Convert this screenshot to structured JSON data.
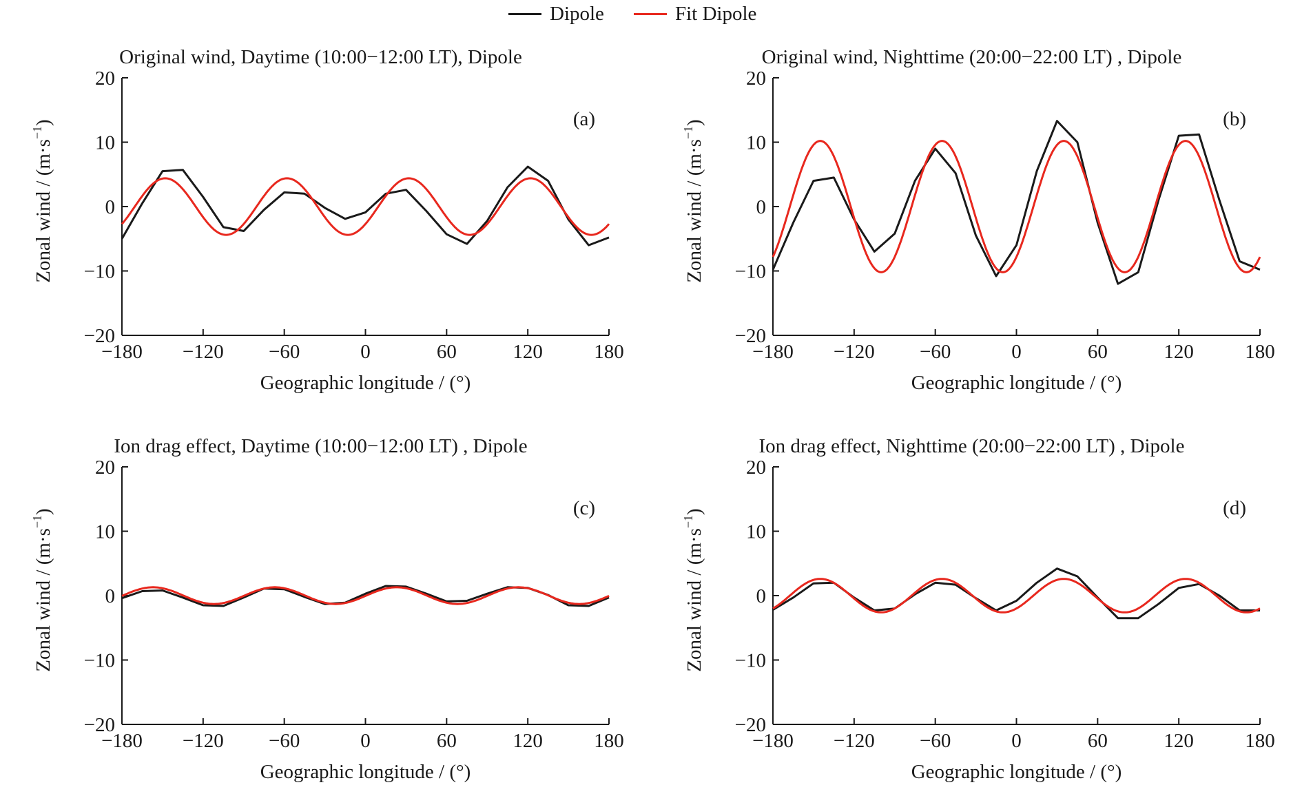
{
  "legend": {
    "items": [
      {
        "label": "Dipole",
        "color": "#1a1a1a"
      },
      {
        "label": "Fit Dipole",
        "color": "#e8281e"
      }
    ]
  },
  "chart_data": [
    {
      "type": "line",
      "title": "Original wind, Daytime (10:00−12:00 LT), Dipole",
      "panel_label": "(a)",
      "xlabel": "Geographic longitude / (°)",
      "ylabel": "Zonal wind / (m·s",
      "ylabel_sup": "−1",
      "ylabel_tail": ")",
      "xlim": [
        -180,
        180
      ],
      "ylim": [
        -20,
        20
      ],
      "xticks": [
        -180,
        -120,
        -60,
        0,
        60,
        120,
        180
      ],
      "xtick_labels": [
        "−180",
        "−120",
        "−60",
        "0",
        "60",
        "120",
        "180"
      ],
      "yticks": [
        -20,
        -10,
        0,
        10,
        20
      ],
      "ytick_labels": [
        "−20",
        "−10",
        "0",
        "10",
        "20"
      ],
      "series": [
        {
          "name": "Dipole",
          "color": "#1a1a1a",
          "x": [
            -180,
            -165,
            -150,
            -135,
            -120,
            -105,
            -90,
            -75,
            -60,
            -45,
            -30,
            -15,
            0,
            15,
            30,
            45,
            60,
            75,
            90,
            105,
            120,
            135,
            150,
            165,
            180
          ],
          "y": [
            -5,
            0.5,
            5.5,
            5.7,
            1.5,
            -3.2,
            -3.8,
            -0.5,
            2.2,
            2.0,
            -0.2,
            -1.9,
            -0.9,
            2.0,
            2.6,
            -0.7,
            -4.3,
            -5.8,
            -2.2,
            3.0,
            6.2,
            4.0,
            -2.0,
            -6.0,
            -4.8
          ]
        },
        {
          "name": "Fit Dipole",
          "color": "#e8281e",
          "fit": {
            "amplitude": 4.4,
            "period": 90,
            "peak": 122
          }
        }
      ]
    },
    {
      "type": "line",
      "title": "Original wind, Nighttime (20:00−22:00 LT) , Dipole",
      "panel_label": "(b)",
      "xlabel": "Geographic longitude / (°)",
      "ylabel": "Zonal wind / (m·s",
      "ylabel_sup": "−1",
      "ylabel_tail": ")",
      "xlim": [
        -180,
        180
      ],
      "ylim": [
        -20,
        20
      ],
      "xticks": [
        -180,
        -120,
        -60,
        0,
        60,
        120,
        180
      ],
      "xtick_labels": [
        "−180",
        "−120",
        "−60",
        "0",
        "60",
        "120",
        "180"
      ],
      "yticks": [
        -20,
        -10,
        0,
        10,
        20
      ],
      "ytick_labels": [
        "−20",
        "−10",
        "0",
        "10",
        "20"
      ],
      "series": [
        {
          "name": "Dipole",
          "color": "#1a1a1a",
          "x": [
            -180,
            -165,
            -150,
            -135,
            -120,
            -105,
            -90,
            -75,
            -60,
            -45,
            -30,
            -15,
            0,
            15,
            30,
            45,
            60,
            75,
            90,
            105,
            120,
            135,
            150,
            165,
            180
          ],
          "y": [
            -9.8,
            -2.5,
            4.0,
            4.5,
            -2.0,
            -7.0,
            -4.2,
            4.0,
            9.0,
            5.2,
            -4.5,
            -10.8,
            -6.0,
            5.5,
            13.3,
            10.0,
            -2.5,
            -12.0,
            -10.2,
            1.0,
            11.0,
            11.2,
            1.0,
            -8.5,
            -9.8
          ]
        },
        {
          "name": "Fit Dipole",
          "color": "#e8281e",
          "fit": {
            "amplitude": 10.2,
            "period": 90,
            "peak": 125
          }
        }
      ]
    },
    {
      "type": "line",
      "title": "Ion drag effect, Daytime (10:00−12:00 LT) , Dipole",
      "panel_label": "(c)",
      "xlabel": "Geographic longitude / (°)",
      "ylabel": "Zonal wind / (m·s",
      "ylabel_sup": "−1",
      "ylabel_tail": ")",
      "xlim": [
        -180,
        180
      ],
      "ylim": [
        -20,
        20
      ],
      "xticks": [
        -180,
        -120,
        -60,
        0,
        60,
        120,
        180
      ],
      "xtick_labels": [
        "−180",
        "−120",
        "−60",
        "0",
        "60",
        "120",
        "180"
      ],
      "yticks": [
        -20,
        -10,
        0,
        10,
        20
      ],
      "ytick_labels": [
        "−20",
        "−10",
        "0",
        "10",
        "20"
      ],
      "series": [
        {
          "name": "Dipole",
          "color": "#1a1a1a",
          "x": [
            -180,
            -165,
            -150,
            -135,
            -120,
            -105,
            -90,
            -75,
            -60,
            -45,
            -30,
            -15,
            0,
            15,
            30,
            45,
            60,
            75,
            90,
            105,
            120,
            135,
            150,
            165,
            180
          ],
          "y": [
            -0.4,
            0.7,
            0.8,
            -0.3,
            -1.5,
            -1.6,
            -0.3,
            1.1,
            1.0,
            -0.2,
            -1.3,
            -1.1,
            0.3,
            1.5,
            1.4,
            0.3,
            -0.9,
            -0.8,
            0.3,
            1.3,
            1.2,
            0.1,
            -1.5,
            -1.6,
            -0.3
          ]
        },
        {
          "name": "Fit Dipole",
          "color": "#e8281e",
          "fit": {
            "amplitude": 1.3,
            "period": 90,
            "peak": 113
          }
        }
      ]
    },
    {
      "type": "line",
      "title": "Ion drag effect, Nighttime (20:00−22:00 LT) , Dipole",
      "panel_label": "(d)",
      "xlabel": "Geographic longitude / (°)",
      "ylabel": "Zonal wind / (m·s",
      "ylabel_sup": "−1",
      "ylabel_tail": ")",
      "xlim": [
        -180,
        180
      ],
      "ylim": [
        -20,
        20
      ],
      "xticks": [
        -180,
        -120,
        -60,
        0,
        60,
        120,
        180
      ],
      "xtick_labels": [
        "−180",
        "−120",
        "−60",
        "0",
        "60",
        "120",
        "180"
      ],
      "yticks": [
        -20,
        -10,
        0,
        10,
        20
      ],
      "ytick_labels": [
        "−20",
        "−10",
        "0",
        "10",
        "20"
      ],
      "series": [
        {
          "name": "Dipole",
          "color": "#1a1a1a",
          "x": [
            -180,
            -165,
            -150,
            -135,
            -120,
            -105,
            -90,
            -75,
            -60,
            -45,
            -30,
            -15,
            0,
            15,
            30,
            45,
            60,
            75,
            90,
            105,
            120,
            135,
            150,
            165,
            180
          ],
          "y": [
            -2.2,
            -0.3,
            1.9,
            2.0,
            -0.3,
            -2.3,
            -2.0,
            0.2,
            2.0,
            1.7,
            -0.4,
            -2.3,
            -0.8,
            2.0,
            4.2,
            3.0,
            -0.3,
            -3.5,
            -3.5,
            -1.3,
            1.2,
            1.8,
            0.0,
            -2.3,
            -2.3
          ]
        },
        {
          "name": "Fit Dipole",
          "color": "#e8281e",
          "fit": {
            "amplitude": 2.6,
            "period": 90,
            "peak": 125
          }
        }
      ]
    }
  ]
}
